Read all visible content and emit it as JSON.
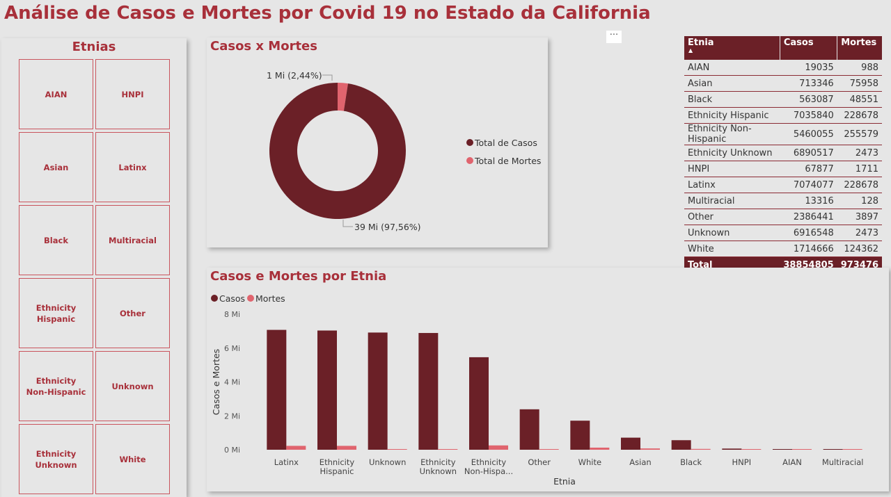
{
  "page": {
    "title": "Análise de Casos e Mortes por Covid 19 no Estado da California"
  },
  "colors": {
    "accent": "#a8303a",
    "casos": "#6b2027",
    "mortes": "#e0646e",
    "background": "#e6e6e6"
  },
  "slicer": {
    "title": "Etnias",
    "items": [
      [
        "AIAN"
      ],
      [
        "HNPI"
      ],
      [
        "Asian"
      ],
      [
        "Latinx"
      ],
      [
        "Black"
      ],
      [
        "Multiracial"
      ],
      [
        "Ethnicity",
        "Hispanic"
      ],
      [
        "Other"
      ],
      [
        "Ethnicity",
        "Non-Hispanic"
      ],
      [
        "Unknown"
      ],
      [
        "Ethnicity",
        "Unknown"
      ],
      [
        "White"
      ]
    ]
  },
  "donut": {
    "title": "Casos x Mortes",
    "legend": [
      "Total de Casos",
      "Total de Mortes"
    ],
    "label_casos": "39 Mi (97,56%)",
    "label_mortes": "1 Mi (2,44%)"
  },
  "more_options": {
    "icon": "ellipsis-icon",
    "label": "···"
  },
  "table": {
    "headers": [
      "Etnia",
      "Casos",
      "Mortes"
    ],
    "rows": [
      [
        "AIAN",
        "19035",
        "988"
      ],
      [
        "Asian",
        "713346",
        "75958"
      ],
      [
        "Black",
        "563087",
        "48551"
      ],
      [
        "Ethnicity Hispanic",
        "7035840",
        "228678"
      ],
      [
        "Ethnicity Non-Hispanic",
        "5460055",
        "255579"
      ],
      [
        "Ethnicity Unknown",
        "6890517",
        "2473"
      ],
      [
        "HNPI",
        "67877",
        "1711"
      ],
      [
        "Latinx",
        "7074077",
        "228678"
      ],
      [
        "Multiracial",
        "13316",
        "128"
      ],
      [
        "Other",
        "2386441",
        "3897"
      ],
      [
        "Unknown",
        "6916548",
        "2473"
      ],
      [
        "White",
        "1714666",
        "124362"
      ]
    ],
    "total": [
      "Total",
      "38854805",
      "973476"
    ]
  },
  "chart_data": [
    {
      "type": "pie",
      "title": "Casos x Mortes",
      "categories": [
        "Total de Casos",
        "Total de Mortes"
      ],
      "values": [
        38854805,
        973476
      ],
      "labels": [
        "39 Mi (97,56%)",
        "1 Mi (2,44%)"
      ],
      "colors": [
        "#6b2027",
        "#e0646e"
      ],
      "legend": "right"
    },
    {
      "type": "bar",
      "title": "Casos e Mortes por Etnia",
      "xlabel": "Etnia",
      "ylabel": "Casos e Mortes",
      "legend": "top-left",
      "ylim": [
        0,
        8000000
      ],
      "yticks": [
        "0 Mi",
        "2 Mi",
        "4 Mi",
        "6 Mi",
        "8 Mi"
      ],
      "ytick_values": [
        0,
        2000000,
        4000000,
        6000000,
        8000000
      ],
      "categories": [
        [
          "Latinx"
        ],
        [
          "Ethnicity",
          "Hispanic"
        ],
        [
          "Unknown"
        ],
        [
          "Ethnicity",
          "Unknown"
        ],
        [
          "Ethnicity",
          "Non-Hispa..."
        ],
        [
          "Other"
        ],
        [
          "White"
        ],
        [
          "Asian"
        ],
        [
          "Black"
        ],
        [
          "HNPI"
        ],
        [
          "AIAN"
        ],
        [
          "Multiracial"
        ]
      ],
      "series": [
        {
          "name": "Casos",
          "color": "#6b2027",
          "values": [
            7074077,
            7035840,
            6916548,
            6890517,
            5460055,
            2386441,
            1714666,
            713346,
            563087,
            67877,
            19035,
            13316
          ]
        },
        {
          "name": "Mortes",
          "color": "#e0646e",
          "values": [
            228678,
            228678,
            2473,
            2473,
            255579,
            3897,
            124362,
            75958,
            48551,
            1711,
            988,
            128
          ]
        }
      ]
    }
  ]
}
